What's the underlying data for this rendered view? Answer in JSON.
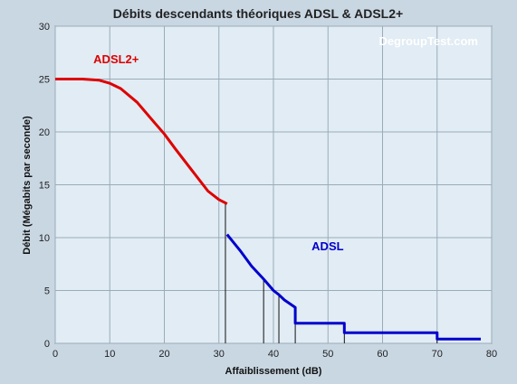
{
  "chart_data": {
    "type": "line",
    "title": "Débits descendants théoriques ADSL & ADSL2+",
    "watermark": "DegroupTest.com",
    "xlabel": "Affaiblissement (dB)",
    "ylabel": "Débit (Mégabits par seconde)",
    "xlim": [
      0,
      80
    ],
    "ylim": [
      0,
      30
    ],
    "xticks": [
      0,
      10,
      20,
      30,
      40,
      50,
      60,
      70,
      80
    ],
    "yticks": [
      0,
      5,
      10,
      15,
      20,
      25,
      30
    ],
    "grid": true,
    "background_color": "#c9d7e3",
    "plot_background_color": "#e1ecf4",
    "grid_color": "#9aabb9",
    "series": [
      {
        "name": "ADSL2+",
        "color": "#dd0000",
        "x": [
          0,
          5,
          8,
          10,
          12,
          15,
          18,
          20,
          22,
          25,
          28,
          30,
          31.5
        ],
        "y": [
          25.0,
          25.0,
          24.9,
          24.6,
          24.1,
          22.8,
          21.0,
          19.8,
          18.4,
          16.4,
          14.4,
          13.6,
          13.2
        ]
      },
      {
        "name": "ADSL",
        "color": "#0000cc",
        "x": [
          31.5,
          34,
          36,
          38,
          38.5,
          40,
          41,
          42,
          44,
          44,
          53,
          53,
          70,
          70,
          78
        ],
        "y": [
          10.3,
          8.7,
          7.3,
          6.2,
          5.9,
          5.0,
          4.6,
          4.1,
          3.4,
          1.9,
          1.9,
          1.0,
          1.0,
          0.4,
          0.4
        ]
      }
    ],
    "drop_lines_x": [
      31.2,
      38.2,
      41.0,
      44.0,
      53.0,
      70.0
    ],
    "annotations": [
      {
        "text": "ADSL2+",
        "x": 7,
        "y": 26.5,
        "color": "#dd0000"
      },
      {
        "text": "ADSL",
        "x": 47,
        "y": 8.8,
        "color": "#0000cc"
      }
    ]
  }
}
